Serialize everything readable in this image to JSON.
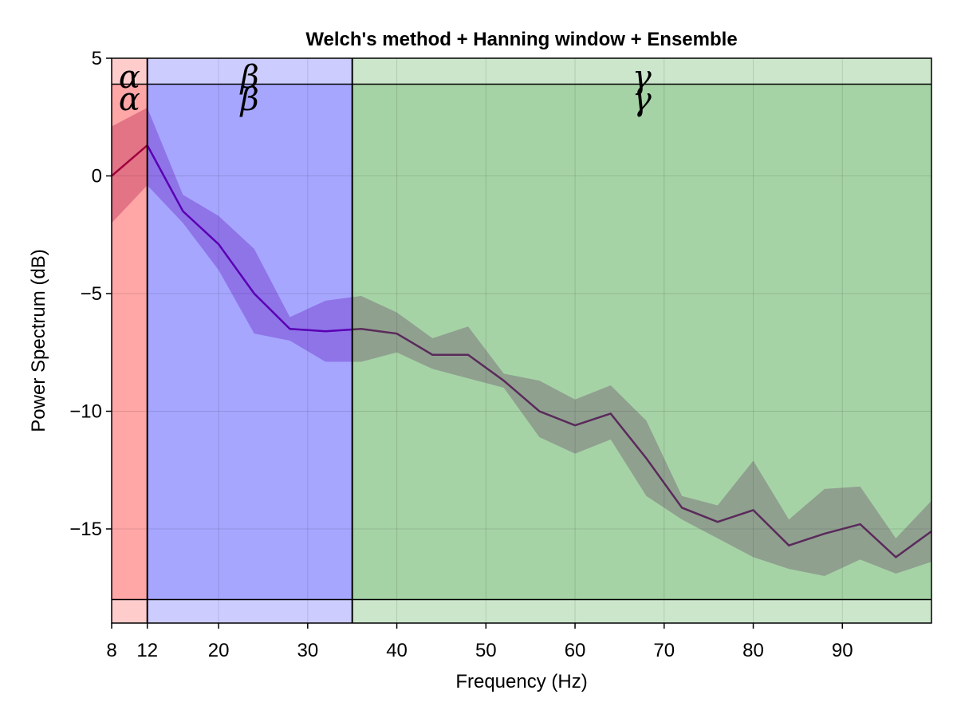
{
  "chart_data": {
    "type": "line",
    "title": "Welch's method + Hanning window + Ensemble",
    "xlabel": "Frequency (Hz)",
    "ylabel": "Power Spectrum (dB)",
    "xlim": [
      8,
      100
    ],
    "ylim": [
      -19,
      5
    ],
    "x_ticks": [
      8,
      12,
      20,
      30,
      40,
      50,
      60,
      70,
      80,
      90
    ],
    "x_tick_labels": [
      "8",
      "12",
      "20",
      "30",
      "40",
      "50",
      "60",
      "70",
      "80",
      "90"
    ],
    "y_ticks": [
      5,
      0,
      -5,
      -10,
      -15
    ],
    "y_tick_labels": [
      "5",
      "0",
      "−5",
      "−10",
      "−15"
    ],
    "grid": true,
    "bands": [
      {
        "label": "α",
        "x_range": [
          8,
          12
        ],
        "color": "#ff0000",
        "line_color": "#a0003c"
      },
      {
        "label": "β",
        "x_range": [
          12,
          35
        ],
        "color": "#0000ff",
        "line_color": "#5a00b4"
      },
      {
        "label": "γ",
        "x_range": [
          35,
          100
        ],
        "color": "#008000",
        "line_color": "#5a2a5a"
      }
    ],
    "band_strip_top": [
      3.9,
      5
    ],
    "band_strip_bottom": [
      -19,
      -18
    ],
    "series": [
      {
        "x": [
          8,
          12,
          16,
          20,
          24,
          28,
          32,
          36,
          40,
          44,
          48,
          52,
          56,
          60,
          64,
          68,
          72,
          76,
          80,
          84,
          88,
          92,
          96,
          100
        ],
        "y": [
          0.0,
          1.3,
          -1.5,
          -2.9,
          -5.0,
          -6.5,
          -6.6,
          -6.5,
          -6.7,
          -7.6,
          -7.6,
          -8.7,
          -10.0,
          -10.6,
          -10.1,
          -12.0,
          -14.1,
          -14.7,
          -14.2,
          -15.7,
          -15.2,
          -14.8,
          -16.2,
          -15.1
        ],
        "lower": [
          -2.0,
          -0.4,
          -2.0,
          -4.0,
          -6.7,
          -7.0,
          -7.9,
          -7.9,
          -7.5,
          -8.2,
          -8.6,
          -9.0,
          -11.1,
          -11.8,
          -11.2,
          -13.6,
          -14.6,
          -15.4,
          -16.2,
          -16.7,
          -17.0,
          -16.3,
          -16.9,
          -16.4
        ],
        "upper": [
          2.1,
          2.9,
          -0.8,
          -1.7,
          -3.1,
          -6.0,
          -5.3,
          -5.1,
          -5.8,
          -6.9,
          -6.4,
          -8.4,
          -8.7,
          -9.5,
          -8.9,
          -10.4,
          -13.6,
          -14.0,
          -12.1,
          -14.6,
          -13.3,
          -13.2,
          -15.4,
          -13.8
        ]
      }
    ]
  }
}
